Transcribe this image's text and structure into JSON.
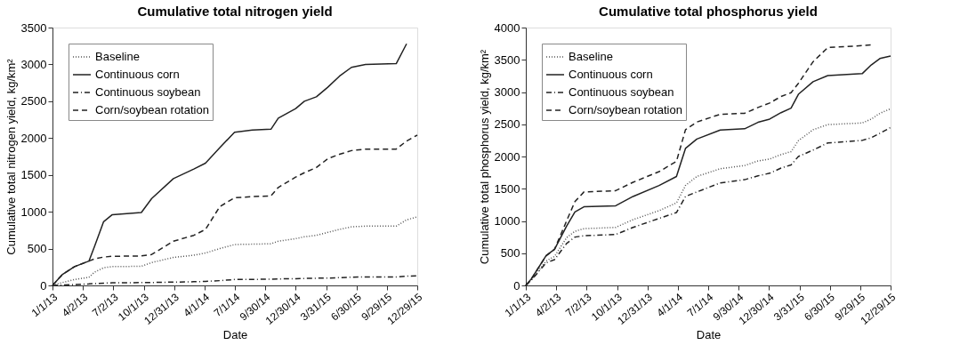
{
  "chart_data": [
    {
      "type": "line",
      "title": "Cumulative total nitrogen yield",
      "xlabel": "Date",
      "ylabel": "Cumulative total nitrogen yield, kg/km²",
      "legend": "top left",
      "grid": false,
      "marker": "none",
      "x": [
        "2013-01-01",
        "2013-01-31",
        "2013-03-08",
        "2013-04-20",
        "2013-05-07",
        "2013-06-03",
        "2013-06-29",
        "2013-09-24",
        "2013-10-25",
        "2013-12-29",
        "2014-02-28",
        "2014-04-04",
        "2014-05-17",
        "2014-06-30",
        "2014-08-22",
        "2014-10-17",
        "2014-11-08",
        "2014-12-30",
        "2015-01-25",
        "2015-03-02",
        "2015-04-05",
        "2015-05-10",
        "2015-06-15",
        "2015-07-27",
        "2015-10-27",
        "2015-11-27",
        "2015-12-29"
      ],
      "xlim": [
        "2013-01-01",
        "2015-12-29"
      ],
      "xticks": [
        {
          "value": "2013-01-01",
          "label": "1/1/13"
        },
        {
          "value": "2013-04-02",
          "label": "4/2/13"
        },
        {
          "value": "2013-07-02",
          "label": "7/2/13"
        },
        {
          "value": "2013-10-01",
          "label": "10/1/13"
        },
        {
          "value": "2013-12-31",
          "label": "12/31/13"
        },
        {
          "value": "2014-04-01",
          "label": "4/1/14"
        },
        {
          "value": "2014-07-01",
          "label": "7/1/14"
        },
        {
          "value": "2014-09-30",
          "label": "9/30/14"
        },
        {
          "value": "2014-12-30",
          "label": "12/30/14"
        },
        {
          "value": "2015-03-31",
          "label": "3/31/15"
        },
        {
          "value": "2015-06-30",
          "label": "6/30/15"
        },
        {
          "value": "2015-09-29",
          "label": "9/29/15"
        },
        {
          "value": "2015-12-29",
          "label": "12/29/15"
        }
      ],
      "ylim": [
        0,
        3500
      ],
      "yticks": [
        0,
        500,
        1000,
        1500,
        2000,
        2500,
        3000,
        3500
      ],
      "series": [
        {
          "name": "Baseline",
          "color": "#555555",
          "line_style": "dotted",
          "values": [
            0,
            40,
            80,
            110,
            180,
            240,
            255,
            260,
            310,
            380,
            410,
            440,
            500,
            555,
            560,
            565,
            600,
            635,
            660,
            680,
            720,
            760,
            795,
            805,
            805,
            890,
            930
          ]
        },
        {
          "name": "Continuous corn",
          "color": "#222222",
          "line_style": "solid",
          "values": [
            0,
            150,
            255,
            330,
            530,
            865,
            960,
            990,
            1180,
            1450,
            1580,
            1660,
            1870,
            2080,
            2110,
            2120,
            2270,
            2400,
            2500,
            2560,
            2690,
            2840,
            2960,
            3000,
            3010,
            3280,
            null
          ]
        },
        {
          "name": "Continuous soybean",
          "color": "#222222",
          "line_style": "dashdot",
          "values": [
            0,
            5,
            12,
            20,
            25,
            30,
            35,
            38,
            40,
            45,
            50,
            55,
            65,
            80,
            82,
            85,
            88,
            92,
            95,
            98,
            100,
            105,
            112,
            115,
            115,
            125,
            130
          ]
        },
        {
          "name": "Corn/soybean rotation",
          "color": "#222222",
          "line_style": "dashed",
          "values": [
            0,
            150,
            255,
            330,
            360,
            385,
            395,
            400,
            420,
            600,
            680,
            760,
            1070,
            1190,
            1205,
            1215,
            1330,
            1470,
            1530,
            1600,
            1720,
            1780,
            1830,
            1850,
            1850,
            1960,
            2040
          ]
        }
      ]
    },
    {
      "type": "line",
      "title": "Cumulative total phosphorus yield",
      "xlabel": "Date",
      "ylabel": "Cumulative total phosphorus yield, kg/km²",
      "legend": "top left",
      "grid": false,
      "marker": "none",
      "x": [
        "2013-01-01",
        "2013-01-18",
        "2013-03-03",
        "2013-03-28",
        "2013-05-03",
        "2013-05-28",
        "2013-06-24",
        "2013-09-27",
        "2013-11-18",
        "2014-02-04",
        "2014-03-28",
        "2014-04-24",
        "2014-05-28",
        "2014-08-06",
        "2014-10-18",
        "2014-11-27",
        "2015-01-01",
        "2015-02-04",
        "2015-03-06",
        "2015-03-28",
        "2015-05-11",
        "2015-06-24",
        "2015-10-05",
        "2015-11-01",
        "2015-11-27",
        "2015-12-29"
      ],
      "xlim": [
        "2013-01-01",
        "2015-12-29"
      ],
      "xticks": [
        {
          "value": "2013-01-01",
          "label": "1/1/13"
        },
        {
          "value": "2013-04-02",
          "label": "4/2/13"
        },
        {
          "value": "2013-07-02",
          "label": "7/2/13"
        },
        {
          "value": "2013-10-01",
          "label": "10/1/13"
        },
        {
          "value": "2013-12-31",
          "label": "12/31/13"
        },
        {
          "value": "2014-04-01",
          "label": "4/1/14"
        },
        {
          "value": "2014-07-01",
          "label": "7/1/14"
        },
        {
          "value": "2014-09-30",
          "label": "9/30/14"
        },
        {
          "value": "2014-12-30",
          "label": "12/30/14"
        },
        {
          "value": "2015-03-31",
          "label": "3/31/15"
        },
        {
          "value": "2015-06-30",
          "label": "6/30/15"
        },
        {
          "value": "2015-09-29",
          "label": "9/29/15"
        },
        {
          "value": "2015-12-29",
          "label": "12/29/15"
        }
      ],
      "ylim": [
        0,
        4000
      ],
      "yticks": [
        0,
        500,
        1000,
        1500,
        2000,
        2500,
        3000,
        3500,
        4000
      ],
      "series": [
        {
          "name": "Baseline",
          "color": "#555555",
          "line_style": "dotted",
          "values": [
            0,
            90,
            380,
            450,
            740,
            840,
            880,
            900,
            1020,
            1160,
            1280,
            1550,
            1690,
            1810,
            1860,
            1930,
            1960,
            2030,
            2075,
            2245,
            2415,
            2495,
            2520,
            2580,
            2670,
            2740
          ]
        },
        {
          "name": "Continuous corn",
          "color": "#222222",
          "line_style": "solid",
          "values": [
            0,
            105,
            465,
            560,
            920,
            1140,
            1220,
            1235,
            1380,
            1550,
            1690,
            2125,
            2270,
            2410,
            2430,
            2530,
            2580,
            2680,
            2750,
            2965,
            3160,
            3255,
            3285,
            3420,
            3520,
            3560
          ]
        },
        {
          "name": "Continuous soybean",
          "color": "#222222",
          "line_style": "dashdot",
          "values": [
            0,
            85,
            350,
            400,
            650,
            750,
            770,
            790,
            900,
            1040,
            1130,
            1380,
            1450,
            1590,
            1640,
            1700,
            1740,
            1820,
            1870,
            2000,
            2100,
            2210,
            2250,
            2290,
            2360,
            2450
          ]
        },
        {
          "name": "Corn/soybean rotation",
          "color": "#222222",
          "line_style": "dashed",
          "values": [
            0,
            105,
            460,
            560,
            1000,
            1300,
            1450,
            1470,
            1600,
            1765,
            1925,
            2415,
            2535,
            2655,
            2670,
            2760,
            2830,
            2930,
            2990,
            3135,
            3470,
            3690,
            3720,
            3730,
            null,
            null
          ]
        }
      ]
    }
  ]
}
